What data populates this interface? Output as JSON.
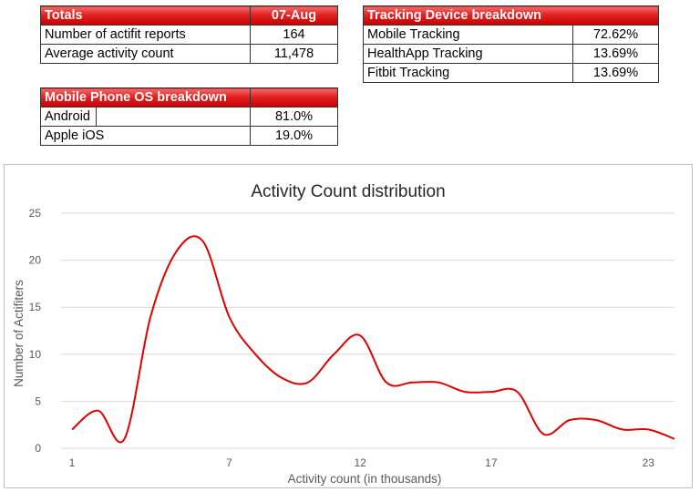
{
  "totals": {
    "title": "Totals",
    "date": "07-Aug",
    "rows": [
      {
        "label": "Number of actifit reports",
        "value": "164"
      },
      {
        "label": "Average activity count",
        "value": "11,478"
      }
    ]
  },
  "tracking_device": {
    "title": "Tracking Device breakdown",
    "rows": [
      {
        "label": "Mobile Tracking",
        "value": "72.62%"
      },
      {
        "label": "HealthApp Tracking",
        "value": "13.69%"
      },
      {
        "label": "Fitbit Tracking",
        "value": "13.69%"
      }
    ]
  },
  "mobile_os": {
    "title": "Mobile Phone OS breakdown",
    "rows": [
      {
        "label": "Android",
        "value": "81.0%"
      },
      {
        "label": "Apple iOS",
        "value": "19.0%"
      }
    ]
  },
  "chart_data": {
    "type": "line",
    "title": "Activity Count distribution",
    "xlabel": "Activity count (in thousands)",
    "ylabel": "Number of Actifiters",
    "x": [
      1,
      2,
      3,
      4,
      5,
      6,
      7,
      8,
      9,
      10,
      11,
      12,
      13,
      14,
      15,
      16,
      17,
      18,
      19,
      20,
      21,
      22,
      23,
      24
    ],
    "series": [
      {
        "values": [
          2,
          4,
          1,
          14,
          21,
          22,
          14,
          10,
          7.5,
          7,
          10,
          12,
          7,
          7,
          7,
          6,
          6,
          6,
          1.5,
          3,
          3,
          2,
          2,
          1
        ]
      }
    ],
    "xticks": [
      1,
      7,
      12,
      17,
      23
    ],
    "xlim": [
      1,
      24
    ],
    "ylim": [
      0,
      25
    ],
    "yticks": [
      0,
      5,
      10,
      15,
      20,
      25
    ],
    "grid": true,
    "line_color": "#e00000"
  }
}
